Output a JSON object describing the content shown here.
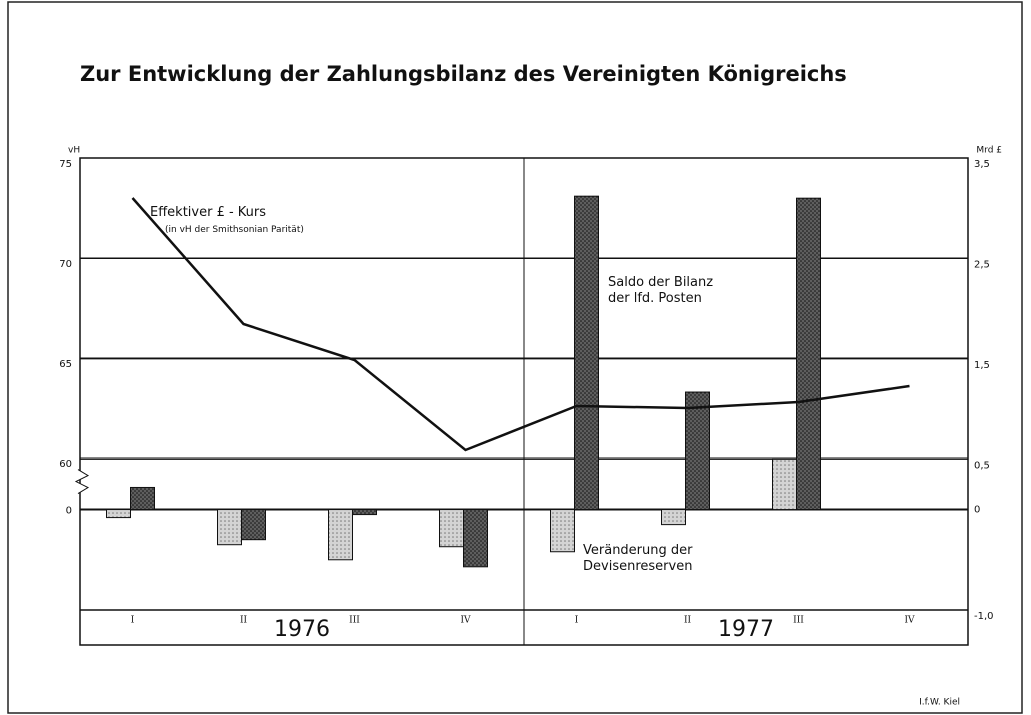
{
  "chart_data": {
    "type": "bar_line",
    "title": "Zur Entwicklung der Zahlungsbilanz des Vereinigten Königreichs",
    "y_unit": "vH",
    "y2_unit": "Mrd £",
    "y_break_label": "0",
    "categories": [
      "I",
      "II",
      "III",
      "IV",
      "I",
      "II",
      "III",
      "IV"
    ],
    "x_groups": [
      "1976",
      "1977"
    ],
    "series": [
      {
        "name": "Effektiver £ - Kurs",
        "note": "(in vH der Smithsonian Parität)",
        "type": "line",
        "axis": "y",
        "color": "#111111",
        "values": [
          73.0,
          66.7,
          64.9,
          60.4,
          62.6,
          62.5,
          62.8,
          63.6
        ]
      },
      {
        "name": "Veränderung der Devisenreserven",
        "type": "bar",
        "axis": "y2",
        "color": "#d4d4d4",
        "values": [
          -0.08,
          -0.35,
          -0.5,
          -0.37,
          -0.42,
          -0.15,
          0.5,
          null
        ]
      },
      {
        "name": "Saldo der Bilanz der lfd. Posten",
        "type": "bar",
        "axis": "y2",
        "color": "#5e5e5e",
        "values": [
          0.22,
          -0.3,
          -0.05,
          -0.57,
          3.12,
          1.17,
          3.1,
          null
        ]
      }
    ],
    "ylim": [
      60,
      75
    ],
    "yticks": [
      60,
      65,
      70,
      75
    ],
    "y2lim": [
      -1,
      3.5
    ],
    "y2ticks": [
      {
        "value": 3.5,
        "label": "3,5"
      },
      {
        "value": 2.5,
        "label": "2,5"
      },
      {
        "value": 1.5,
        "label": "1,5"
      },
      {
        "value": 0.5,
        "label": "0,5"
      },
      0,
      {
        "value": -1,
        "label": "-1,0"
      }
    ],
    "grid": true,
    "source": "I.f.W. Kiel"
  }
}
